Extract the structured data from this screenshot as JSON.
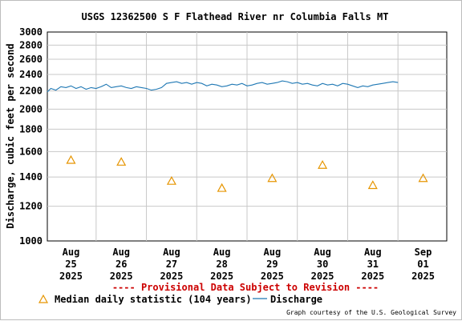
{
  "chart_data": {
    "type": "line",
    "title": "USGS 12362500 S F Flathead River nr Columbia Falls MT",
    "ylabel": "Discharge, cubic feet per second",
    "xlabel": "",
    "y_scale": "log",
    "ylim": [
      1000,
      3000
    ],
    "y_ticks": [
      "3000",
      "2800",
      "2600",
      "2400",
      "2200",
      "2000",
      "1800",
      "1600",
      "1400",
      "1200",
      "1000"
    ],
    "y_tick_values": [
      3000,
      2800,
      2600,
      2400,
      2200,
      2000,
      1800,
      1600,
      1400,
      1200,
      1000
    ],
    "x_ticks": [
      {
        "value": 0,
        "lines": [
          "Aug",
          "25",
          "2025"
        ]
      },
      {
        "value": 1,
        "lines": [
          "Aug",
          "26",
          "2025"
        ]
      },
      {
        "value": 2,
        "lines": [
          "Aug",
          "27",
          "2025"
        ]
      },
      {
        "value": 3,
        "lines": [
          "Aug",
          "28",
          "2025"
        ]
      },
      {
        "value": 4,
        "lines": [
          "Aug",
          "29",
          "2025"
        ]
      },
      {
        "value": 5,
        "lines": [
          "Aug",
          "30",
          "2025"
        ]
      },
      {
        "value": 6,
        "lines": [
          "Aug",
          "31",
          "2025"
        ]
      },
      {
        "value": 7,
        "lines": [
          "Sep",
          "01",
          "2025"
        ]
      }
    ],
    "xlim": [
      -0.47,
      7.47
    ],
    "grid": true,
    "series": [
      {
        "name": "Discharge",
        "type": "line",
        "color": "#1f78b4",
        "x": [
          -0.47,
          -0.4,
          -0.3,
          -0.2,
          -0.1,
          0.0,
          0.1,
          0.2,
          0.3,
          0.4,
          0.5,
          0.6,
          0.7,
          0.8,
          0.9,
          1.0,
          1.1,
          1.2,
          1.3,
          1.4,
          1.5,
          1.6,
          1.7,
          1.8,
          1.9,
          2.0,
          2.1,
          2.2,
          2.3,
          2.4,
          2.5,
          2.6,
          2.7,
          2.8,
          2.9,
          3.0,
          3.1,
          3.2,
          3.3,
          3.4,
          3.5,
          3.6,
          3.7,
          3.8,
          3.9,
          4.0,
          4.1,
          4.2,
          4.3,
          4.4,
          4.5,
          4.6,
          4.7,
          4.8,
          4.9,
          5.0,
          5.1,
          5.2,
          5.3,
          5.4,
          5.5,
          5.6,
          5.7,
          5.8,
          5.9,
          6.0,
          6.1,
          6.2,
          6.3,
          6.4,
          6.5
        ],
        "y": [
          2190,
          2230,
          2210,
          2250,
          2240,
          2260,
          2230,
          2250,
          2220,
          2240,
          2230,
          2250,
          2280,
          2240,
          2250,
          2260,
          2240,
          2230,
          2250,
          2240,
          2230,
          2210,
          2220,
          2240,
          2290,
          2300,
          2310,
          2290,
          2300,
          2280,
          2300,
          2290,
          2260,
          2280,
          2270,
          2250,
          2260,
          2280,
          2270,
          2290,
          2260,
          2270,
          2290,
          2300,
          2280,
          2290,
          2300,
          2320,
          2310,
          2290,
          2300,
          2280,
          2290,
          2270,
          2260,
          2290,
          2270,
          2280,
          2260,
          2290,
          2280,
          2260,
          2240,
          2260,
          2250,
          2270,
          2280,
          2290,
          2300,
          2310,
          2300
        ]
      },
      {
        "name": "Median daily statistic (104 years)",
        "type": "scatter",
        "marker": "triangle",
        "color": "#e69500",
        "x": [
          0,
          1,
          2,
          3,
          4,
          5,
          6,
          7
        ],
        "y": [
          1530,
          1515,
          1370,
          1320,
          1390,
          1490,
          1340,
          1390
        ]
      }
    ],
    "legend": {
      "placement": "bottom",
      "entries": [
        "Median daily statistic (104 years)",
        "Discharge"
      ]
    },
    "annotations": [
      "---- Provisional Data Subject to Revision ----"
    ]
  },
  "credit": "Graph courtesy of the U.S. Geological Survey"
}
